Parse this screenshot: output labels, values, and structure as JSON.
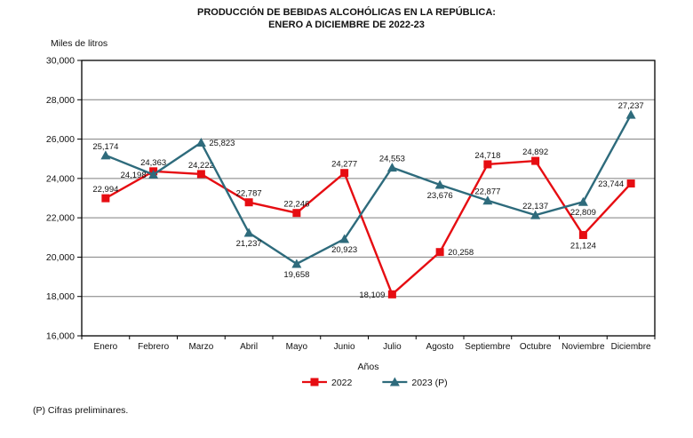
{
  "title": {
    "line1": "PRODUCCIÓN DE BEBIDAS ALCOHÓLICAS EN LA REPÚBLICA:",
    "line2": "ENERO A DICIEMBRE DE 2022-23"
  },
  "footer": "(P) Cifras preliminares.",
  "chart_data": {
    "type": "line",
    "title": "PRODUCCIÓN DE BEBIDAS ALCOHÓLICAS EN LA REPÚBLICA: ENERO A DICIEMBRE DE 2022-23",
    "y_axis_label": "Miles de litros",
    "x_axis_label": "Años",
    "categories": [
      "Enero",
      "Febrero",
      "Marzo",
      "Abril",
      "Mayo",
      "Junio",
      "Julio",
      "Agosto",
      "Septiembre",
      "Octubre",
      "Noviembre",
      "Diciembre"
    ],
    "series": [
      {
        "name": "2022",
        "color": "#e60d12",
        "marker": "square",
        "values": [
          22994,
          24363,
          24222,
          22787,
          22246,
          24277,
          18109,
          20258,
          24718,
          24892,
          21124,
          23744
        ],
        "label_pos": [
          "above",
          "above",
          "above",
          "above",
          "above",
          "above",
          "left",
          "right",
          "above",
          "above",
          "below",
          "left"
        ]
      },
      {
        "name": "2023 (P)",
        "color": "#2e6b7c",
        "marker": "triangle",
        "values": [
          25174,
          24198,
          25823,
          21237,
          19658,
          20923,
          24553,
          23676,
          22877,
          22137,
          22809,
          27237
        ],
        "label_pos": [
          "above",
          "left",
          "right",
          "below",
          "below",
          "below",
          "above",
          "below",
          "above",
          "above",
          "below",
          "above"
        ]
      }
    ],
    "ylim": [
      16000,
      30000
    ],
    "ytick_step": 2000,
    "grid": "horizontal",
    "gridline_color": "#7f7f7f",
    "axis_color": "#000000",
    "legend_position": "bottom",
    "number_format": "thousands-comma"
  }
}
